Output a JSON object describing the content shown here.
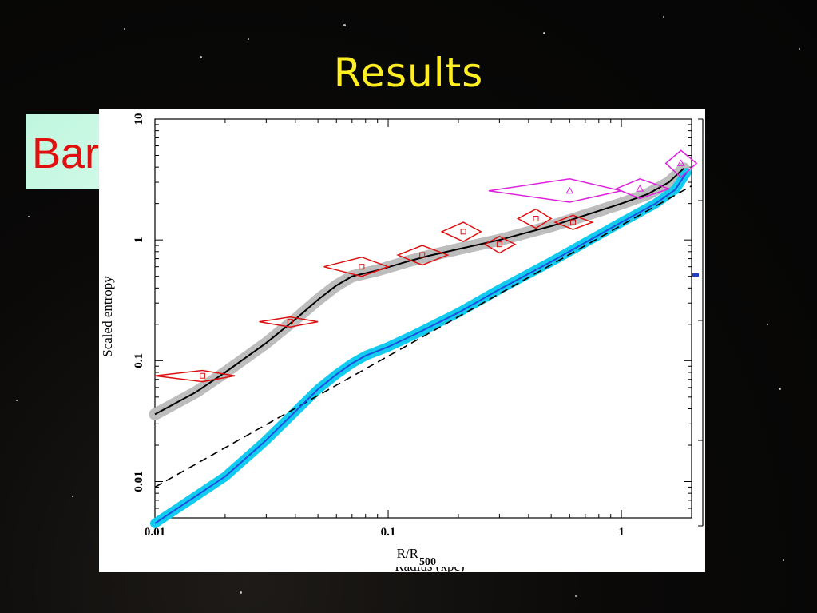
{
  "slide": {
    "title": "Results",
    "bullet_text_visible": "Bar"
  },
  "chart_data": {
    "type": "line",
    "xlabel": "R/R",
    "xlabel_sub": "500",
    "xlabel_hidden_behind": "Radius (kpc)",
    "ylabel": "Scaled entropy",
    "xscale": "log",
    "yscale": "log",
    "xlim": [
      0.01,
      2.0
    ],
    "ylim": [
      0.005,
      10
    ],
    "x_ticks": [
      "0.01",
      "0.1",
      "1"
    ],
    "y_ticks": [
      "0.01",
      "0.1",
      "1",
      "10"
    ],
    "series": [
      {
        "style": "black line with grey band",
        "color": "#000000",
        "points": [
          [
            0.01,
            0.036
          ],
          [
            0.015,
            0.055
          ],
          [
            0.02,
            0.08
          ],
          [
            0.03,
            0.14
          ],
          [
            0.04,
            0.22
          ],
          [
            0.05,
            0.32
          ],
          [
            0.06,
            0.42
          ],
          [
            0.07,
            0.5
          ],
          [
            0.09,
            0.56
          ],
          [
            0.12,
            0.66
          ],
          [
            0.15,
            0.74
          ],
          [
            0.2,
            0.84
          ],
          [
            0.3,
            1.0
          ],
          [
            0.5,
            1.3
          ],
          [
            0.7,
            1.6
          ],
          [
            1.0,
            2.0
          ],
          [
            1.3,
            2.4
          ],
          [
            1.6,
            3.0
          ],
          [
            1.85,
            3.9
          ]
        ]
      },
      {
        "style": "cyan band with blue line",
        "color": "#1e50e0",
        "points": [
          [
            0.01,
            0.0045
          ],
          [
            0.02,
            0.011
          ],
          [
            0.03,
            0.022
          ],
          [
            0.04,
            0.038
          ],
          [
            0.05,
            0.058
          ],
          [
            0.06,
            0.077
          ],
          [
            0.07,
            0.095
          ],
          [
            0.08,
            0.11
          ],
          [
            0.1,
            0.13
          ],
          [
            0.13,
            0.165
          ],
          [
            0.2,
            0.25
          ],
          [
            0.3,
            0.39
          ],
          [
            0.5,
            0.66
          ],
          [
            0.7,
            0.95
          ],
          [
            1.0,
            1.4
          ],
          [
            1.4,
            2.0
          ],
          [
            1.7,
            2.6
          ],
          [
            1.9,
            3.6
          ]
        ]
      },
      {
        "style": "dashed baseline",
        "color": "#000000",
        "points": [
          [
            0.01,
            0.009
          ],
          [
            2.0,
            2.8
          ]
        ]
      }
    ],
    "red_points": [
      {
        "x": 0.016,
        "y": 0.075,
        "xlo": 0.01,
        "xhi": 0.022,
        "ylo": 0.067,
        "yhi": 0.083
      },
      {
        "x": 0.038,
        "y": 0.21,
        "xlo": 0.028,
        "xhi": 0.05,
        "ylo": 0.19,
        "yhi": 0.23
      },
      {
        "x": 0.077,
        "y": 0.6,
        "xlo": 0.053,
        "xhi": 0.1,
        "ylo": 0.5,
        "yhi": 0.72
      },
      {
        "x": 0.14,
        "y": 0.75,
        "xlo": 0.11,
        "xhi": 0.18,
        "ylo": 0.62,
        "yhi": 0.9
      },
      {
        "x": 0.21,
        "y": 1.17,
        "xlo": 0.17,
        "xhi": 0.25,
        "ylo": 0.97,
        "yhi": 1.4
      },
      {
        "x": 0.3,
        "y": 0.92,
        "xlo": 0.26,
        "xhi": 0.35,
        "ylo": 0.78,
        "yhi": 1.07
      },
      {
        "x": 0.43,
        "y": 1.5,
        "xlo": 0.36,
        "xhi": 0.5,
        "ylo": 1.25,
        "yhi": 1.8
      },
      {
        "x": 0.62,
        "y": 1.4,
        "xlo": 0.52,
        "xhi": 0.75,
        "ylo": 1.22,
        "yhi": 1.6
      }
    ],
    "magenta_points": [
      {
        "x": 0.6,
        "y": 2.55,
        "xlo": 0.27,
        "xhi": 1.0,
        "ylo": 2.05,
        "yhi": 3.2
      },
      {
        "x": 1.2,
        "y": 2.65,
        "xlo": 0.95,
        "xhi": 1.6,
        "ylo": 2.2,
        "yhi": 3.2
      },
      {
        "x": 1.8,
        "y": 4.3,
        "xlo": 1.55,
        "xhi": 2.1,
        "ylo": 3.3,
        "yhi": 5.5
      }
    ],
    "colors": {
      "red": "#dd1111",
      "magenta": "#dd22dd",
      "cyan": "#11ccee",
      "blue": "#1e50e0",
      "grey": "#bdbdbd"
    }
  }
}
